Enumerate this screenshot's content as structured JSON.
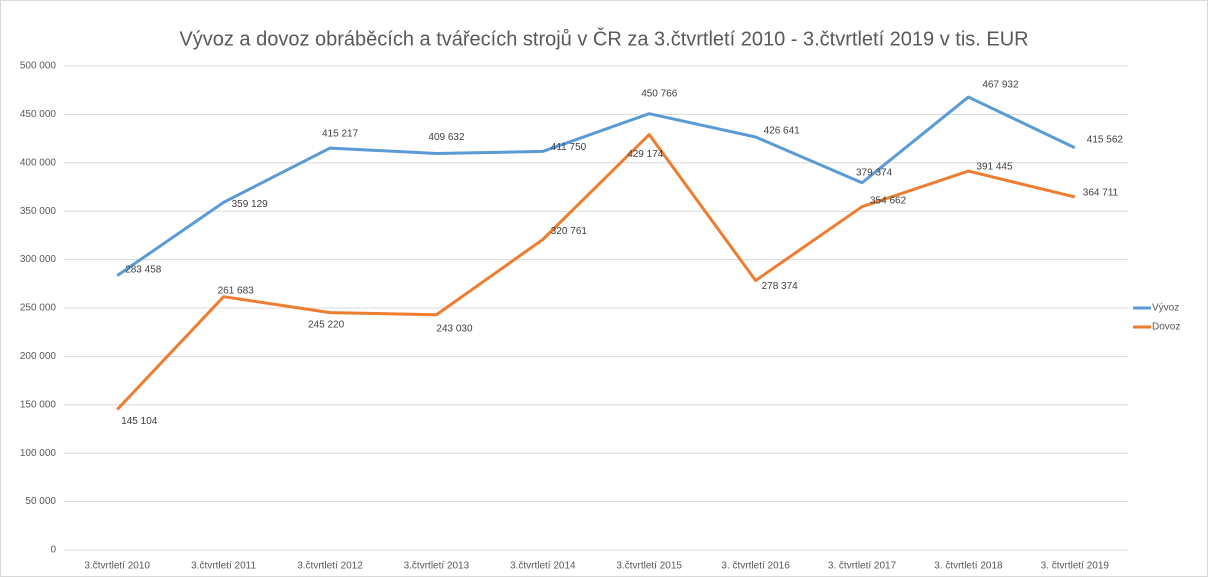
{
  "chart_data": {
    "type": "line",
    "title": "Vývoz a dovoz obráběcích a tvářecích strojů v ČR za 3.čtvrtletí 2010 - 3.čtvrtletí 2019 v tis. EUR",
    "categories": [
      "3.čtvrtletí 2010",
      "3.čtvrtletí 2011",
      "3.čtvrtletí 2012",
      "3.čtvrtletí 2013",
      "3.čtvrtletí 2014",
      "3.čtvrtletí 2015",
      "3. čtvrtletí 2016",
      "3. čtvrtletí 2017",
      "3. čtvrtletí 2018",
      "3. čtvrtletí 2019"
    ],
    "series": [
      {
        "name": "Vývoz",
        "color": "#5b9bd5",
        "values": [
          283458,
          359129,
          415217,
          409632,
          411750,
          450766,
          426641,
          379374,
          467932,
          415562
        ],
        "value_labels": [
          "283 458",
          "359 129",
          "415 217",
          "409 632",
          "411 750",
          "450 766",
          "426 641",
          "379 374",
          "467 932",
          "415 562"
        ]
      },
      {
        "name": "Dovoz",
        "color": "#ed7d31",
        "values": [
          145104,
          261683,
          245220,
          243030,
          320761,
          429174,
          278374,
          354662,
          391445,
          364711
        ],
        "value_labels": [
          "145 104",
          "261 683",
          "245 220",
          "243 030",
          "320 761",
          "429 174",
          "278 374",
          "354 662",
          "391 445",
          "364 711"
        ]
      }
    ],
    "ylim": [
      0,
      500000
    ],
    "yticks": [
      0,
      {
        "value": 50000,
        "label": "50 000"
      },
      {
        "value": 100000,
        "label": "100 000"
      },
      {
        "value": 150000,
        "label": "150 000"
      },
      {
        "value": 200000,
        "label": "200 000"
      },
      {
        "value": 250000,
        "label": "250 000"
      },
      {
        "value": 300000,
        "label": "300 000"
      },
      {
        "value": 350000,
        "label": "350 000"
      },
      {
        "value": 400000,
        "label": "400 000"
      },
      {
        "value": 450000,
        "label": "450 000"
      },
      {
        "value": 500000,
        "label": "500 000"
      }
    ],
    "grid": true,
    "legend": "right"
  }
}
